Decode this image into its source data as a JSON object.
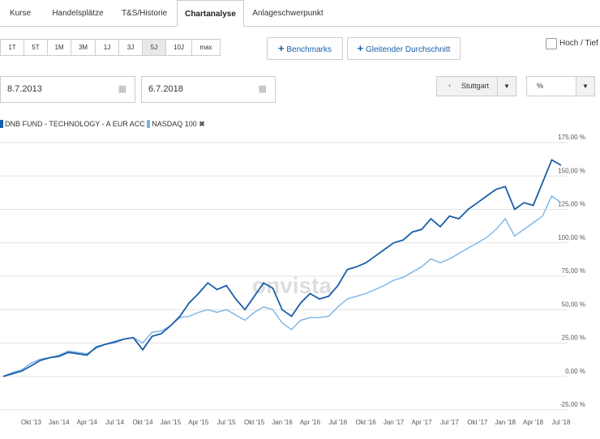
{
  "tabs": [
    "Kurse",
    "Handelsplätze",
    "T&S/Historie",
    "Chartanalyse",
    "Anlageschwerpunkt"
  ],
  "ranges": [
    "1T",
    "5T",
    "1M",
    "3M",
    "1J",
    "3J",
    "5J",
    "10J",
    "max"
  ],
  "buttons": [
    "Benchmarks",
    "Gleitender Durchschnitt"
  ],
  "checkbox_label": "Hoch / Tief",
  "date_from": "8.7.2013",
  "date_to": "6.7.2018",
  "exchange": "Stuttgart",
  "unit": "%",
  "watermark": "onvista",
  "chart_data": {
    "type": "line",
    "categories": [
      null,
      null,
      null,
      "Okt '13",
      null,
      null,
      "Jan '14",
      null,
      null,
      "Apr '14",
      null,
      null,
      "Jul '14",
      null,
      null,
      "Okt '14",
      null,
      null,
      "Jan '15",
      null,
      null,
      "Apr '15",
      null,
      null,
      "Jul '15",
      null,
      null,
      "Okt '15",
      null,
      null,
      "Jan '16",
      null,
      null,
      "Apr '16",
      null,
      null,
      "Jul '16",
      null,
      null,
      "Okt '16",
      null,
      null,
      "Jan '17",
      null,
      null,
      "Apr '17",
      null,
      null,
      "Jul '17",
      null,
      null,
      "Okt '17",
      null,
      null,
      "Jan '18",
      null,
      null,
      "Apr '18",
      null,
      null,
      "Jul '18"
    ],
    "series": [
      {
        "name": "DNB FUND - TECHNOLOGY - A EUR ACC",
        "color": "#1a5ea8",
        "values": [
          0,
          2,
          4,
          8,
          12,
          14,
          15,
          18,
          17,
          16,
          22,
          24,
          26,
          28,
          29,
          20,
          30,
          32,
          38,
          45,
          55,
          62,
          70,
          65,
          68,
          58,
          50,
          60,
          70,
          66,
          50,
          45,
          55,
          62,
          58,
          60,
          68,
          80,
          82,
          85,
          90,
          95,
          100,
          102,
          108,
          110,
          118,
          112,
          120,
          118,
          125,
          130,
          135,
          140,
          142,
          125,
          130,
          128,
          145,
          162,
          158
        ]
      },
      {
        "name": "NASDAQ 100",
        "color": "#7ab4e6",
        "values": [
          0,
          3,
          5,
          10,
          13,
          14,
          16,
          19,
          18,
          17,
          21,
          24,
          25,
          28,
          29,
          25,
          33,
          34,
          38,
          44,
          45,
          48,
          50,
          48,
          50,
          46,
          42,
          48,
          52,
          50,
          40,
          35,
          42,
          44,
          44,
          45,
          52,
          58,
          60,
          62,
          65,
          68,
          72,
          74,
          78,
          82,
          88,
          85,
          88,
          92,
          96,
          100,
          104,
          110,
          118,
          105,
          110,
          115,
          120,
          135,
          130
        ]
      }
    ],
    "ylim": [
      -25,
      175
    ],
    "yticks": [
      {
        "value": -25,
        "label": "-25,00 %"
      },
      {
        "value": 0,
        "label": "0,00 %"
      },
      {
        "value": 25,
        "label": "25,00 %"
      },
      {
        "value": 50,
        "label": "50,00 %"
      },
      {
        "value": 75,
        "label": "75,00 %"
      },
      {
        "value": 100,
        "label": "100,00 %"
      },
      {
        "value": 125,
        "label": "125,00 %"
      },
      {
        "value": 150,
        "label": "150,00 %"
      },
      {
        "value": 175,
        "label": "175,00 %"
      }
    ],
    "grid": true
  }
}
